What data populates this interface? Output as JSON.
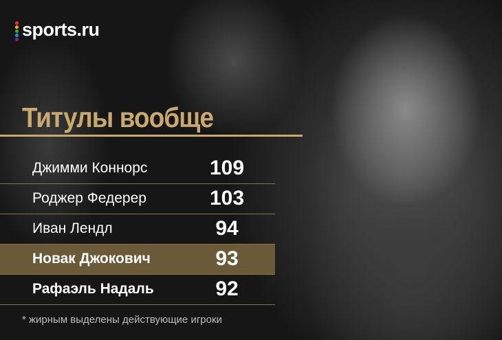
{
  "logo": "sports.ru",
  "title": "Титулы вообще",
  "table": {
    "rows": [
      {
        "name": "Джимми Коннорс",
        "value": "109",
        "bold": false,
        "highlight": false
      },
      {
        "name": "Роджер Федерер",
        "value": "103",
        "bold": false,
        "highlight": false
      },
      {
        "name": "Иван Лендл",
        "value": "94",
        "bold": false,
        "highlight": false
      },
      {
        "name": "Новак Джокович",
        "value": "93",
        "bold": true,
        "highlight": true
      },
      {
        "name": "Рафаэль Надаль",
        "value": "92",
        "bold": true,
        "highlight": false
      }
    ]
  },
  "footnote": "* жирным выделены действующие игроки"
}
